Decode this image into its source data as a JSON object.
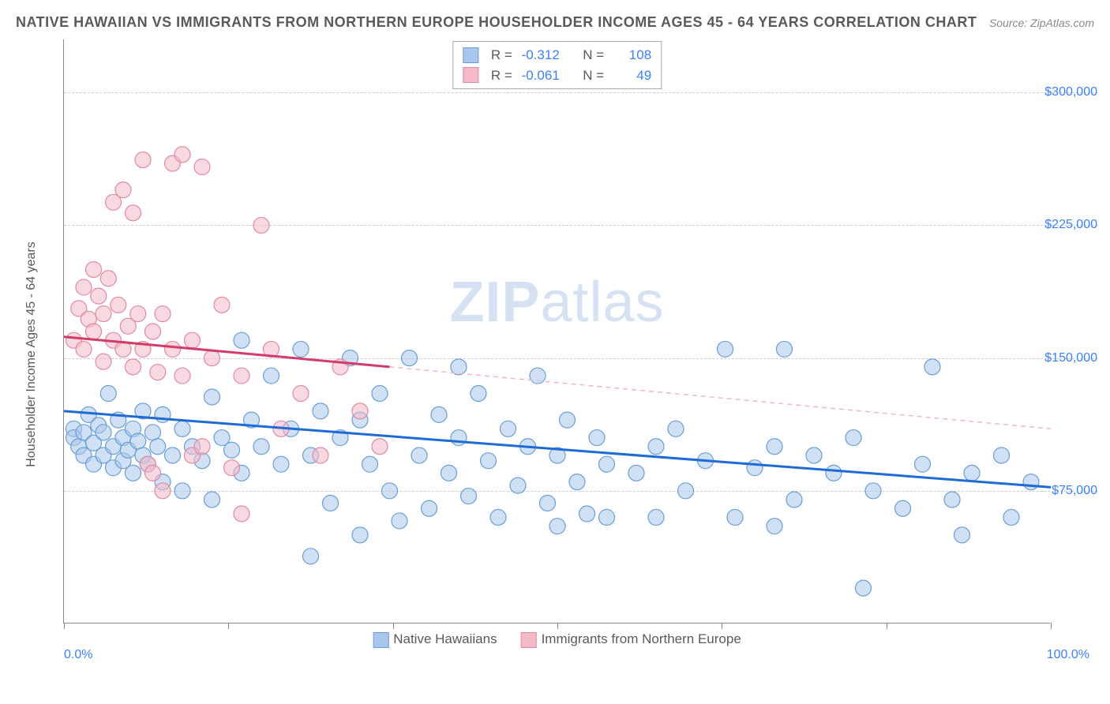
{
  "title": "NATIVE HAWAIIAN VS IMMIGRANTS FROM NORTHERN EUROPE HOUSEHOLDER INCOME AGES 45 - 64 YEARS CORRELATION CHART",
  "source": "Source: ZipAtlas.com",
  "watermark_bold": "ZIP",
  "watermark_light": "atlas",
  "y_axis_label": "Householder Income Ages 45 - 64 years",
  "chart": {
    "type": "scatter",
    "xlim": [
      0,
      100
    ],
    "ylim": [
      0,
      330000
    ],
    "x_ticks": [
      0,
      16.67,
      33.33,
      50,
      66.67,
      83.33,
      100
    ],
    "x_tick_labels_shown": {
      "left": "0.0%",
      "right": "100.0%"
    },
    "y_gridlines": [
      75000,
      150000,
      225000,
      300000
    ],
    "y_tick_labels": [
      "$75,000",
      "$150,000",
      "$225,000",
      "$300,000"
    ],
    "grid_color": "#cccccc",
    "background_color": "#ffffff",
    "axis_color": "#888888",
    "tick_label_color": "#3b82f6",
    "series": [
      {
        "name": "Native Hawaiians",
        "fill_color": "#a9c7ec",
        "stroke_color": "#6a9fd4",
        "fill_opacity": 0.55,
        "marker_radius": 10,
        "stats": {
          "R": "-0.312",
          "N": "108"
        },
        "regression": {
          "x1": 0,
          "y1": 120000,
          "x2": 100,
          "y2": 77000,
          "color": "#1e6bd6",
          "width": 3,
          "dash": "none"
        },
        "points": [
          [
            1,
            110000
          ],
          [
            1,
            105000
          ],
          [
            1.5,
            100000
          ],
          [
            2,
            108000
          ],
          [
            2,
            95000
          ],
          [
            2.5,
            118000
          ],
          [
            3,
            102000
          ],
          [
            3,
            90000
          ],
          [
            3.5,
            112000
          ],
          [
            4,
            108000
          ],
          [
            4,
            95000
          ],
          [
            4.5,
            130000
          ],
          [
            5,
            100000
          ],
          [
            5,
            88000
          ],
          [
            5.5,
            115000
          ],
          [
            6,
            105000
          ],
          [
            6,
            92000
          ],
          [
            6.5,
            98000
          ],
          [
            7,
            110000
          ],
          [
            7,
            85000
          ],
          [
            7.5,
            103000
          ],
          [
            8,
            95000
          ],
          [
            8,
            120000
          ],
          [
            8.5,
            90000
          ],
          [
            9,
            108000
          ],
          [
            9.5,
            100000
          ],
          [
            10,
            118000
          ],
          [
            10,
            80000
          ],
          [
            11,
            95000
          ],
          [
            12,
            110000
          ],
          [
            12,
            75000
          ],
          [
            13,
            100000
          ],
          [
            14,
            92000
          ],
          [
            15,
            128000
          ],
          [
            15,
            70000
          ],
          [
            16,
            105000
          ],
          [
            17,
            98000
          ],
          [
            18,
            160000
          ],
          [
            18,
            85000
          ],
          [
            19,
            115000
          ],
          [
            20,
            100000
          ],
          [
            21,
            140000
          ],
          [
            22,
            90000
          ],
          [
            23,
            110000
          ],
          [
            24,
            155000
          ],
          [
            25,
            38000
          ],
          [
            25,
            95000
          ],
          [
            26,
            120000
          ],
          [
            27,
            68000
          ],
          [
            28,
            105000
          ],
          [
            29,
            150000
          ],
          [
            30,
            50000
          ],
          [
            30,
            115000
          ],
          [
            31,
            90000
          ],
          [
            32,
            130000
          ],
          [
            33,
            75000
          ],
          [
            34,
            58000
          ],
          [
            35,
            150000
          ],
          [
            36,
            95000
          ],
          [
            37,
            65000
          ],
          [
            38,
            118000
          ],
          [
            39,
            85000
          ],
          [
            40,
            105000
          ],
          [
            41,
            72000
          ],
          [
            42,
            130000
          ],
          [
            43,
            92000
          ],
          [
            44,
            60000
          ],
          [
            45,
            110000
          ],
          [
            46,
            78000
          ],
          [
            47,
            100000
          ],
          [
            48,
            140000
          ],
          [
            49,
            68000
          ],
          [
            50,
            95000
          ],
          [
            51,
            115000
          ],
          [
            52,
            80000
          ],
          [
            53,
            62000
          ],
          [
            54,
            105000
          ],
          [
            55,
            90000
          ],
          [
            58,
            85000
          ],
          [
            60,
            100000
          ],
          [
            60,
            60000
          ],
          [
            62,
            110000
          ],
          [
            63,
            75000
          ],
          [
            65,
            92000
          ],
          [
            67,
            155000
          ],
          [
            68,
            60000
          ],
          [
            70,
            88000
          ],
          [
            72,
            100000
          ],
          [
            73,
            155000
          ],
          [
            74,
            70000
          ],
          [
            76,
            95000
          ],
          [
            78,
            85000
          ],
          [
            80,
            105000
          ],
          [
            81,
            20000
          ],
          [
            82,
            75000
          ],
          [
            85,
            65000
          ],
          [
            87,
            90000
          ],
          [
            88,
            145000
          ],
          [
            90,
            70000
          ],
          [
            91,
            50000
          ],
          [
            92,
            85000
          ],
          [
            95,
            95000
          ],
          [
            96,
            60000
          ],
          [
            98,
            80000
          ],
          [
            72,
            55000
          ],
          [
            50,
            55000
          ],
          [
            40,
            145000
          ],
          [
            55,
            60000
          ]
        ]
      },
      {
        "name": "Immigrants from Northern Europe",
        "fill_color": "#f4bac8",
        "stroke_color": "#e08aa0",
        "fill_opacity": 0.55,
        "marker_radius": 10,
        "stats": {
          "R": "-0.061",
          "N": "49"
        },
        "regression": {
          "x1": 0,
          "y1": 162000,
          "x2": 33,
          "y2": 145000,
          "color": "#d33b6a",
          "width": 3,
          "dash": "none"
        },
        "regression_ext": {
          "x1": 33,
          "y1": 145000,
          "x2": 100,
          "y2": 110000,
          "color": "#f0b8c6",
          "width": 1.5,
          "dash": "6,5"
        },
        "points": [
          [
            1,
            160000
          ],
          [
            1.5,
            178000
          ],
          [
            2,
            190000
          ],
          [
            2,
            155000
          ],
          [
            2.5,
            172000
          ],
          [
            3,
            200000
          ],
          [
            3,
            165000
          ],
          [
            3.5,
            185000
          ],
          [
            4,
            148000
          ],
          [
            4,
            175000
          ],
          [
            4.5,
            195000
          ],
          [
            5,
            238000
          ],
          [
            5,
            160000
          ],
          [
            5.5,
            180000
          ],
          [
            6,
            155000
          ],
          [
            6,
            245000
          ],
          [
            6.5,
            168000
          ],
          [
            7,
            232000
          ],
          [
            7,
            145000
          ],
          [
            7.5,
            175000
          ],
          [
            8,
            262000
          ],
          [
            8,
            155000
          ],
          [
            8.5,
            90000
          ],
          [
            9,
            165000
          ],
          [
            9,
            85000
          ],
          [
            9.5,
            142000
          ],
          [
            10,
            175000
          ],
          [
            10,
            75000
          ],
          [
            11,
            260000
          ],
          [
            11,
            155000
          ],
          [
            12,
            265000
          ],
          [
            12,
            140000
          ],
          [
            13,
            95000
          ],
          [
            13,
            160000
          ],
          [
            14,
            258000
          ],
          [
            14,
            100000
          ],
          [
            15,
            150000
          ],
          [
            16,
            180000
          ],
          [
            17,
            88000
          ],
          [
            18,
            140000
          ],
          [
            18,
            62000
          ],
          [
            20,
            225000
          ],
          [
            21,
            155000
          ],
          [
            22,
            110000
          ],
          [
            24,
            130000
          ],
          [
            26,
            95000
          ],
          [
            28,
            145000
          ],
          [
            30,
            120000
          ],
          [
            32,
            100000
          ]
        ]
      }
    ],
    "legend_bottom": [
      {
        "label": "Native Hawaiians",
        "fill": "#a9c7ec",
        "border": "#6a9fd4"
      },
      {
        "label": "Immigrants from Northern Europe",
        "fill": "#f4bac8",
        "border": "#e08aa0"
      }
    ],
    "stats_box": {
      "rows": [
        {
          "swatch_fill": "#a9c7ec",
          "swatch_border": "#6a9fd4",
          "R_label": "R =",
          "R": "-0.312",
          "N_label": "N =",
          "N": "108"
        },
        {
          "swatch_fill": "#f4bac8",
          "swatch_border": "#e08aa0",
          "R_label": "R =",
          "R": "-0.061",
          "N_label": "N =",
          "N": "49"
        }
      ]
    }
  }
}
